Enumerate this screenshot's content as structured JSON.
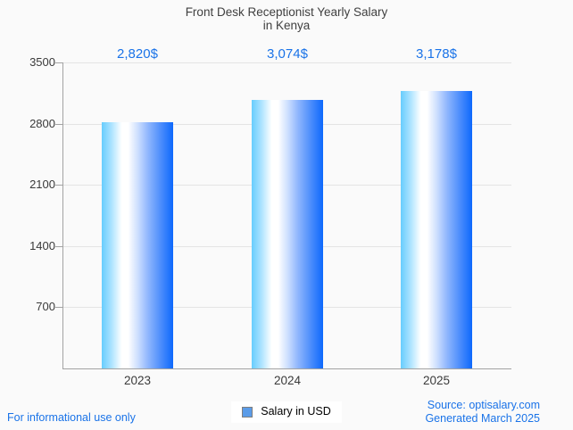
{
  "title": {
    "line1": "Front Desk Receptionist Yearly Salary",
    "line2": "in Kenya"
  },
  "chart_data": {
    "type": "bar",
    "title": "Front Desk Receptionist Yearly Salary in Kenya",
    "categories": [
      "2023",
      "2024",
      "2025"
    ],
    "series": [
      {
        "name": "Salary in USD",
        "values": [
          2820,
          3074,
          3178
        ],
        "value_labels": [
          "2,820$",
          "3,074$",
          "3,178$"
        ]
      }
    ],
    "xlabel": "",
    "ylabel": "",
    "ylim": [
      0,
      3500
    ],
    "y_ticks": [
      700,
      1400,
      2100,
      2800,
      3500
    ],
    "grid": true,
    "legend_position": "bottom-center"
  },
  "legend": {
    "label": "Salary in USD",
    "marker_color": "#5b9ce8"
  },
  "footer": {
    "left": "For informational use only",
    "source": "Source: optisalary.com",
    "generated": "Generated March 2025"
  },
  "colors": {
    "background": "#fafafa",
    "title_text": "#404040",
    "value_label_blue": "#1a73e8",
    "footer_blue": "#1a73e8",
    "axis": "#a3a3a3",
    "gridline": "#e4e4e4",
    "tick_text": "#3a3a3a",
    "bar_gradient_left": "#67cdfe",
    "bar_gradient_middle": "#ffffff",
    "bar_gradient_right": "#0d68fc",
    "legend_marker": "#5b9ce8"
  }
}
